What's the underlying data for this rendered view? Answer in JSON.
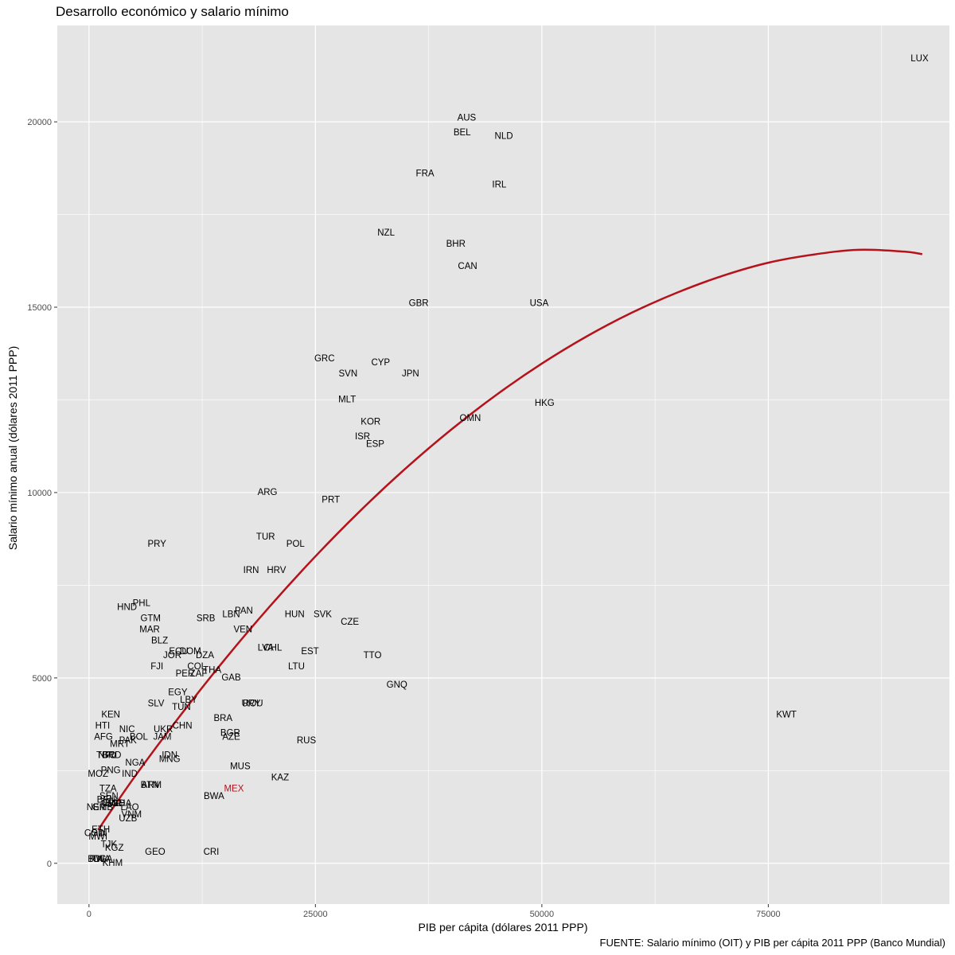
{
  "chart_data": {
    "type": "scatter",
    "title": "Desarrollo económico y salario mínimo",
    "xlabel": "PIB per cápita (dólares 2011 PPP)",
    "ylabel": "Salario mínimo anual (dólares 2011 PPP)",
    "caption": "FUENTE: Salario mínimo (OIT) y PIB per cápita 2011 PPP (Banco Mundial)",
    "xlim": [
      -3500,
      95000
    ],
    "ylim": [
      -1100,
      22600
    ],
    "x_ticks": [
      0,
      25000,
      50000,
      75000
    ],
    "x_tick_labels": [
      "0",
      "25000",
      "50000",
      "75000"
    ],
    "y_ticks": [
      0,
      5000,
      10000,
      15000,
      20000
    ],
    "y_tick_labels": [
      "0",
      "5000",
      "10000",
      "15000",
      "20000"
    ],
    "x_minor": [
      12500,
      37500,
      62500,
      87500
    ],
    "y_minor": [
      2500,
      7500,
      12500,
      17500
    ],
    "grid": true,
    "colors": {
      "panel": "#e5e5e5",
      "grid": "#ffffff",
      "text": "#000000",
      "axis_text": "#4d4d4d",
      "highlight": "#b5121b",
      "fit": "#b5121b"
    },
    "highlight": "MEX",
    "fit_curve": {
      "label": "",
      "x": [
        1000,
        5000,
        10000,
        15000,
        20000,
        25000,
        30000,
        35000,
        40000,
        45000,
        50000,
        55000,
        60000,
        65000,
        70000,
        75000,
        80000,
        85000,
        90000,
        92000
      ],
      "y": [
        900,
        2320,
        3960,
        5500,
        6940,
        8280,
        9520,
        10660,
        11700,
        12640,
        13480,
        14220,
        14860,
        15400,
        15850,
        16200,
        16420,
        16550,
        16500,
        16430
      ]
    },
    "points": [
      {
        "label": "LUX",
        "x": 91700,
        "y": 21700
      },
      {
        "label": "AUS",
        "x": 41700,
        "y": 20100
      },
      {
        "label": "BEL",
        "x": 41200,
        "y": 19700
      },
      {
        "label": "NLD",
        "x": 45800,
        "y": 19600
      },
      {
        "label": "FRA",
        "x": 37100,
        "y": 18600
      },
      {
        "label": "IRL",
        "x": 45300,
        "y": 18300
      },
      {
        "label": "NZL",
        "x": 32800,
        "y": 17000
      },
      {
        "label": "BHR",
        "x": 40500,
        "y": 16700
      },
      {
        "label": "CAN",
        "x": 41800,
        "y": 16100
      },
      {
        "label": "GBR",
        "x": 36400,
        "y": 15100
      },
      {
        "label": "USA",
        "x": 49700,
        "y": 15100
      },
      {
        "label": "GRC",
        "x": 26000,
        "y": 13600
      },
      {
        "label": "CYP",
        "x": 32200,
        "y": 13500
      },
      {
        "label": "SVN",
        "x": 28600,
        "y": 13200
      },
      {
        "label": "JPN",
        "x": 35500,
        "y": 13200
      },
      {
        "label": "MLT",
        "x": 28500,
        "y": 12500
      },
      {
        "label": "HKG",
        "x": 50300,
        "y": 12400
      },
      {
        "label": "OMN",
        "x": 42100,
        "y": 12000
      },
      {
        "label": "KOR",
        "x": 31100,
        "y": 11900
      },
      {
        "label": "ISR",
        "x": 30200,
        "y": 11500
      },
      {
        "label": "ESP",
        "x": 31600,
        "y": 11300
      },
      {
        "label": "ARG",
        "x": 19700,
        "y": 10000
      },
      {
        "label": "PRT",
        "x": 26700,
        "y": 9800
      },
      {
        "label": "PRY",
        "x": 7500,
        "y": 8600
      },
      {
        "label": "TUR",
        "x": 19500,
        "y": 8800
      },
      {
        "label": "POL",
        "x": 22800,
        "y": 8600
      },
      {
        "label": "IRN",
        "x": 17900,
        "y": 7900
      },
      {
        "label": "HRV",
        "x": 20700,
        "y": 7900
      },
      {
        "label": "PHL",
        "x": 5800,
        "y": 7000
      },
      {
        "label": "HND",
        "x": 4200,
        "y": 6900
      },
      {
        "label": "PAN",
        "x": 17100,
        "y": 6800
      },
      {
        "label": "GTM",
        "x": 6800,
        "y": 6600
      },
      {
        "label": "HUN",
        "x": 22700,
        "y": 6700
      },
      {
        "label": "SVK",
        "x": 25800,
        "y": 6700
      },
      {
        "label": "LBN",
        "x": 15700,
        "y": 6700
      },
      {
        "label": "SRB",
        "x": 12900,
        "y": 6600
      },
      {
        "label": "CZE",
        "x": 28800,
        "y": 6500
      },
      {
        "label": "MAR",
        "x": 6700,
        "y": 6300
      },
      {
        "label": "VEN",
        "x": 17000,
        "y": 6300
      },
      {
        "label": "BLZ",
        "x": 7800,
        "y": 6000
      },
      {
        "label": "CHL",
        "x": 20300,
        "y": 5800
      },
      {
        "label": "LVA",
        "x": 19500,
        "y": 5800
      },
      {
        "label": "EST",
        "x": 24400,
        "y": 5700
      },
      {
        "label": "TTO",
        "x": 31300,
        "y": 5600
      },
      {
        "label": "ECU",
        "x": 9900,
        "y": 5700
      },
      {
        "label": "DOM",
        "x": 11200,
        "y": 5700
      },
      {
        "label": "DZA",
        "x": 12800,
        "y": 5600
      },
      {
        "label": "JOR",
        "x": 9200,
        "y": 5600
      },
      {
        "label": "COL",
        "x": 11900,
        "y": 5300
      },
      {
        "label": "LTU",
        "x": 22900,
        "y": 5300
      },
      {
        "label": "FJI",
        "x": 7500,
        "y": 5300
      },
      {
        "label": "THA",
        "x": 13600,
        "y": 5200
      },
      {
        "label": "PER",
        "x": 10600,
        "y": 5100
      },
      {
        "label": "ZAF",
        "x": 12100,
        "y": 5100
      },
      {
        "label": "GAB",
        "x": 15700,
        "y": 5000
      },
      {
        "label": "GNQ",
        "x": 34000,
        "y": 4800
      },
      {
        "label": "EGY",
        "x": 9800,
        "y": 4600
      },
      {
        "label": "LBY",
        "x": 11000,
        "y": 4400
      },
      {
        "label": "SLV",
        "x": 7400,
        "y": 4300
      },
      {
        "label": "TUN",
        "x": 10200,
        "y": 4200
      },
      {
        "label": "URY",
        "x": 17900,
        "y": 4300
      },
      {
        "label": "ROU",
        "x": 18100,
        "y": 4300
      },
      {
        "label": "KEN",
        "x": 2400,
        "y": 4000
      },
      {
        "label": "KWT",
        "x": 77000,
        "y": 4000
      },
      {
        "label": "BRA",
        "x": 14800,
        "y": 3900
      },
      {
        "label": "HTI",
        "x": 1500,
        "y": 3700
      },
      {
        "label": "CHN",
        "x": 10300,
        "y": 3700
      },
      {
        "label": "NIC",
        "x": 4200,
        "y": 3600
      },
      {
        "label": "UKR",
        "x": 8200,
        "y": 3600
      },
      {
        "label": "BGR",
        "x": 15600,
        "y": 3500
      },
      {
        "label": "AFG",
        "x": 1600,
        "y": 3400
      },
      {
        "label": "JAM",
        "x": 8100,
        "y": 3400
      },
      {
        "label": "BOL",
        "x": 5500,
        "y": 3400
      },
      {
        "label": "AZE",
        "x": 15700,
        "y": 3400
      },
      {
        "label": "PAK",
        "x": 4300,
        "y": 3300
      },
      {
        "label": "RUS",
        "x": 24000,
        "y": 3300
      },
      {
        "label": "MRT",
        "x": 3400,
        "y": 3200
      },
      {
        "label": "IDN",
        "x": 8900,
        "y": 2900
      },
      {
        "label": "MNG",
        "x": 8900,
        "y": 2800
      },
      {
        "label": "NPL",
        "x": 2000,
        "y": 2900
      },
      {
        "label": "TGO",
        "x": 1900,
        "y": 2900
      },
      {
        "label": "BRD",
        "x": 2500,
        "y": 2900
      },
      {
        "label": "NGA",
        "x": 5100,
        "y": 2700
      },
      {
        "label": "MUS",
        "x": 16700,
        "y": 2600
      },
      {
        "label": "PNG",
        "x": 2400,
        "y": 2500
      },
      {
        "label": "MOZ",
        "x": 1000,
        "y": 2400
      },
      {
        "label": "IND",
        "x": 4500,
        "y": 2400
      },
      {
        "label": "KAZ",
        "x": 21100,
        "y": 2300
      },
      {
        "label": "ARM",
        "x": 6900,
        "y": 2100
      },
      {
        "label": "BTN",
        "x": 6700,
        "y": 2100
      },
      {
        "label": "MEX",
        "x": 16000,
        "y": 2000
      },
      {
        "label": "TZA",
        "x": 2100,
        "y": 2000
      },
      {
        "label": "BWA",
        "x": 13800,
        "y": 1800
      },
      {
        "label": "SEN",
        "x": 2200,
        "y": 1800
      },
      {
        "label": "BEN",
        "x": 1900,
        "y": 1700
      },
      {
        "label": "GHA",
        "x": 3600,
        "y": 1600
      },
      {
        "label": "LSO",
        "x": 2500,
        "y": 1600
      },
      {
        "label": "CMR",
        "x": 2500,
        "y": 1600
      },
      {
        "label": "BGD",
        "x": 2900,
        "y": 1600
      },
      {
        "label": "NER",
        "x": 800,
        "y": 1500
      },
      {
        "label": "GMB",
        "x": 1500,
        "y": 1500
      },
      {
        "label": "LAO",
        "x": 4500,
        "y": 1500
      },
      {
        "label": "VNM",
        "x": 4700,
        "y": 1300
      },
      {
        "label": "UZB",
        "x": 4300,
        "y": 1200
      },
      {
        "label": "ETH",
        "x": 1300,
        "y": 900
      },
      {
        "label": "GIN",
        "x": 1100,
        "y": 800
      },
      {
        "label": "COD",
        "x": 600,
        "y": 800
      },
      {
        "label": "MWI",
        "x": 1000,
        "y": 700
      },
      {
        "label": "TJK",
        "x": 2200,
        "y": 500
      },
      {
        "label": "KGZ",
        "x": 2800,
        "y": 400
      },
      {
        "label": "GEO",
        "x": 7300,
        "y": 300
      },
      {
        "label": "CRI",
        "x": 13500,
        "y": 300
      },
      {
        "label": "BDI",
        "x": 700,
        "y": 100
      },
      {
        "label": "UGA",
        "x": 1500,
        "y": 100
      },
      {
        "label": "RWA",
        "x": 1200,
        "y": 100
      },
      {
        "label": "KHM",
        "x": 2600,
        "y": 0
      }
    ]
  }
}
